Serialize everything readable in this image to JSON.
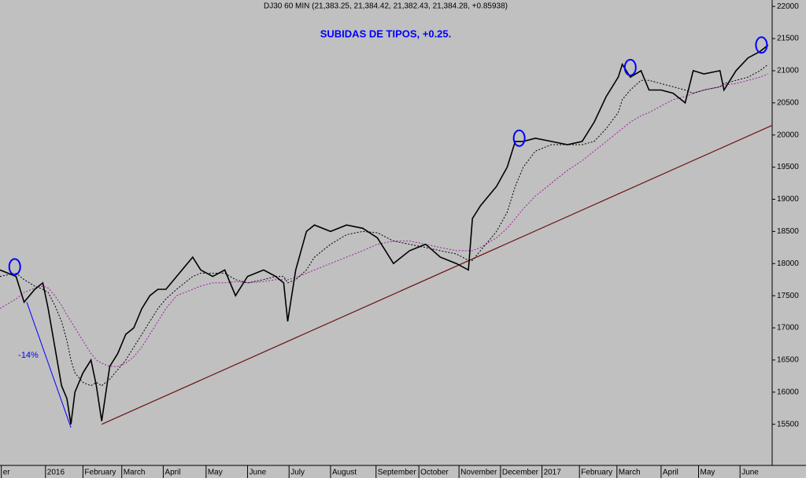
{
  "chart_data": {
    "type": "line",
    "title": "DJ30 60 MIN (21,383.25, 21,384.42, 21,382.43, 21,384.28, +0.85938)",
    "annotation": "SUBIDAS DE TIPOS, +0.25.",
    "x": [
      0,
      12,
      18,
      26,
      32,
      36,
      41,
      46,
      50,
      53,
      56,
      62,
      68,
      72,
      76,
      82,
      88,
      94,
      100,
      106,
      112,
      118,
      124,
      132,
      144,
      150,
      159,
      168,
      176,
      185,
      197,
      206,
      212,
      215,
      221,
      229,
      235,
      247,
      259,
      271,
      282,
      294,
      306,
      318,
      329,
      341,
      350,
      353,
      359,
      371,
      379,
      385,
      391,
      400,
      412,
      424,
      435,
      444,
      453,
      462,
      465,
      471,
      479,
      485,
      494,
      503,
      512,
      518,
      526,
      538,
      541,
      550,
      559,
      568,
      574
    ],
    "series": [
      {
        "color": "#000000",
        "style": "solid",
        "values": [
          17900,
          17800,
          17400,
          17600,
          17700,
          17300,
          16700,
          16100,
          15900,
          15500,
          16000,
          16300,
          16500,
          16100,
          15550,
          16400,
          16600,
          16900,
          17000,
          17300,
          17500,
          17600,
          17600,
          17800,
          18100,
          17900,
          17800,
          17900,
          17500,
          17800,
          17900,
          17800,
          17700,
          17100,
          17900,
          18500,
          18600,
          18500,
          18600,
          18550,
          18400,
          18000,
          18200,
          18300,
          18100,
          18000,
          17900,
          18700,
          18900,
          19200,
          19500,
          19900,
          19900,
          19950,
          19900,
          19850,
          19900,
          20200,
          20600,
          20900,
          21100,
          20900,
          21000,
          20700,
          20700,
          20650,
          20500,
          21000,
          20950,
          21000,
          20700,
          21000,
          21200,
          21300,
          21400
        ]
      },
      {
        "color": "#000000",
        "style": "dotted",
        "values": [
          17800,
          17850,
          17750,
          17650,
          17600,
          17550,
          17350,
          17100,
          16800,
          16500,
          16300,
          16150,
          16100,
          16150,
          16100,
          16200,
          16350,
          16500,
          16700,
          16900,
          17100,
          17300,
          17450,
          17600,
          17800,
          17850,
          17850,
          17850,
          17750,
          17700,
          17750,
          17800,
          17800,
          17700,
          17750,
          17900,
          18100,
          18300,
          18450,
          18500,
          18480,
          18350,
          18300,
          18250,
          18200,
          18150,
          18050,
          18050,
          18200,
          18500,
          18800,
          19200,
          19500,
          19750,
          19850,
          19850,
          19850,
          19900,
          20100,
          20350,
          20550,
          20700,
          20850,
          20850,
          20800,
          20750,
          20700,
          20650,
          20700,
          20750,
          20800,
          20850,
          20900,
          21000,
          21100
        ]
      },
      {
        "color": "#a020a0",
        "style": "dotted",
        "values": [
          17300,
          17450,
          17550,
          17620,
          17650,
          17620,
          17500,
          17350,
          17200,
          17100,
          17000,
          16800,
          16600,
          16500,
          16450,
          16400,
          16400,
          16450,
          16550,
          16700,
          16900,
          17100,
          17300,
          17500,
          17600,
          17650,
          17700,
          17700,
          17720,
          17700,
          17720,
          17750,
          17750,
          17750,
          17780,
          17850,
          17900,
          18000,
          18100,
          18200,
          18300,
          18350,
          18350,
          18300,
          18250,
          18200,
          18200,
          18200,
          18250,
          18400,
          18550,
          18700,
          18850,
          19050,
          19250,
          19450,
          19600,
          19750,
          19900,
          20050,
          20100,
          20200,
          20300,
          20350,
          20450,
          20550,
          20600,
          20650,
          20700,
          20750,
          20780,
          20800,
          20850,
          20900,
          20950
        ]
      }
    ],
    "trend_line": {
      "color": "#6b1010",
      "x": [
        76,
        577
      ],
      "values": [
        15500,
        20150
      ]
    },
    "drawdown_line": {
      "color": "#0000ff",
      "label": "-14%",
      "x": [
        20,
        53
      ],
      "values": [
        17400,
        15450
      ]
    },
    "highlights": {
      "color": "#0000ff",
      "x": [
        11,
        388,
        471,
        569
      ],
      "values": [
        17950,
        19950,
        21050,
        21400
      ]
    },
    "xlim": [
      0,
      577
    ],
    "xticks": [
      {
        "value": 1,
        "label": "er"
      },
      {
        "value": 34,
        "label": "2016"
      },
      {
        "value": 62,
        "label": "February"
      },
      {
        "value": 91,
        "label": "March"
      },
      {
        "value": 122,
        "label": "April"
      },
      {
        "value": 154,
        "label": "May"
      },
      {
        "value": 185,
        "label": "June"
      },
      {
        "value": 216,
        "label": "July"
      },
      {
        "value": 247,
        "label": "August"
      },
      {
        "value": 281,
        "label": "September"
      },
      {
        "value": 313,
        "label": "October"
      },
      {
        "value": 343,
        "label": "November"
      },
      {
        "value": 374,
        "label": "December"
      },
      {
        "value": 405,
        "label": "2017"
      },
      {
        "value": 433,
        "label": "February"
      },
      {
        "value": 461,
        "label": "March"
      },
      {
        "value": 494,
        "label": "April"
      },
      {
        "value": 522,
        "label": "May"
      },
      {
        "value": 553,
        "label": "June"
      }
    ],
    "ylim": [
      14860,
      22100
    ],
    "yticks": [
      15500,
      16000,
      16500,
      17000,
      17500,
      18000,
      18500,
      19000,
      19500,
      20000,
      20500,
      21000,
      21500,
      22000
    ],
    "background": "#c0c0c0"
  }
}
